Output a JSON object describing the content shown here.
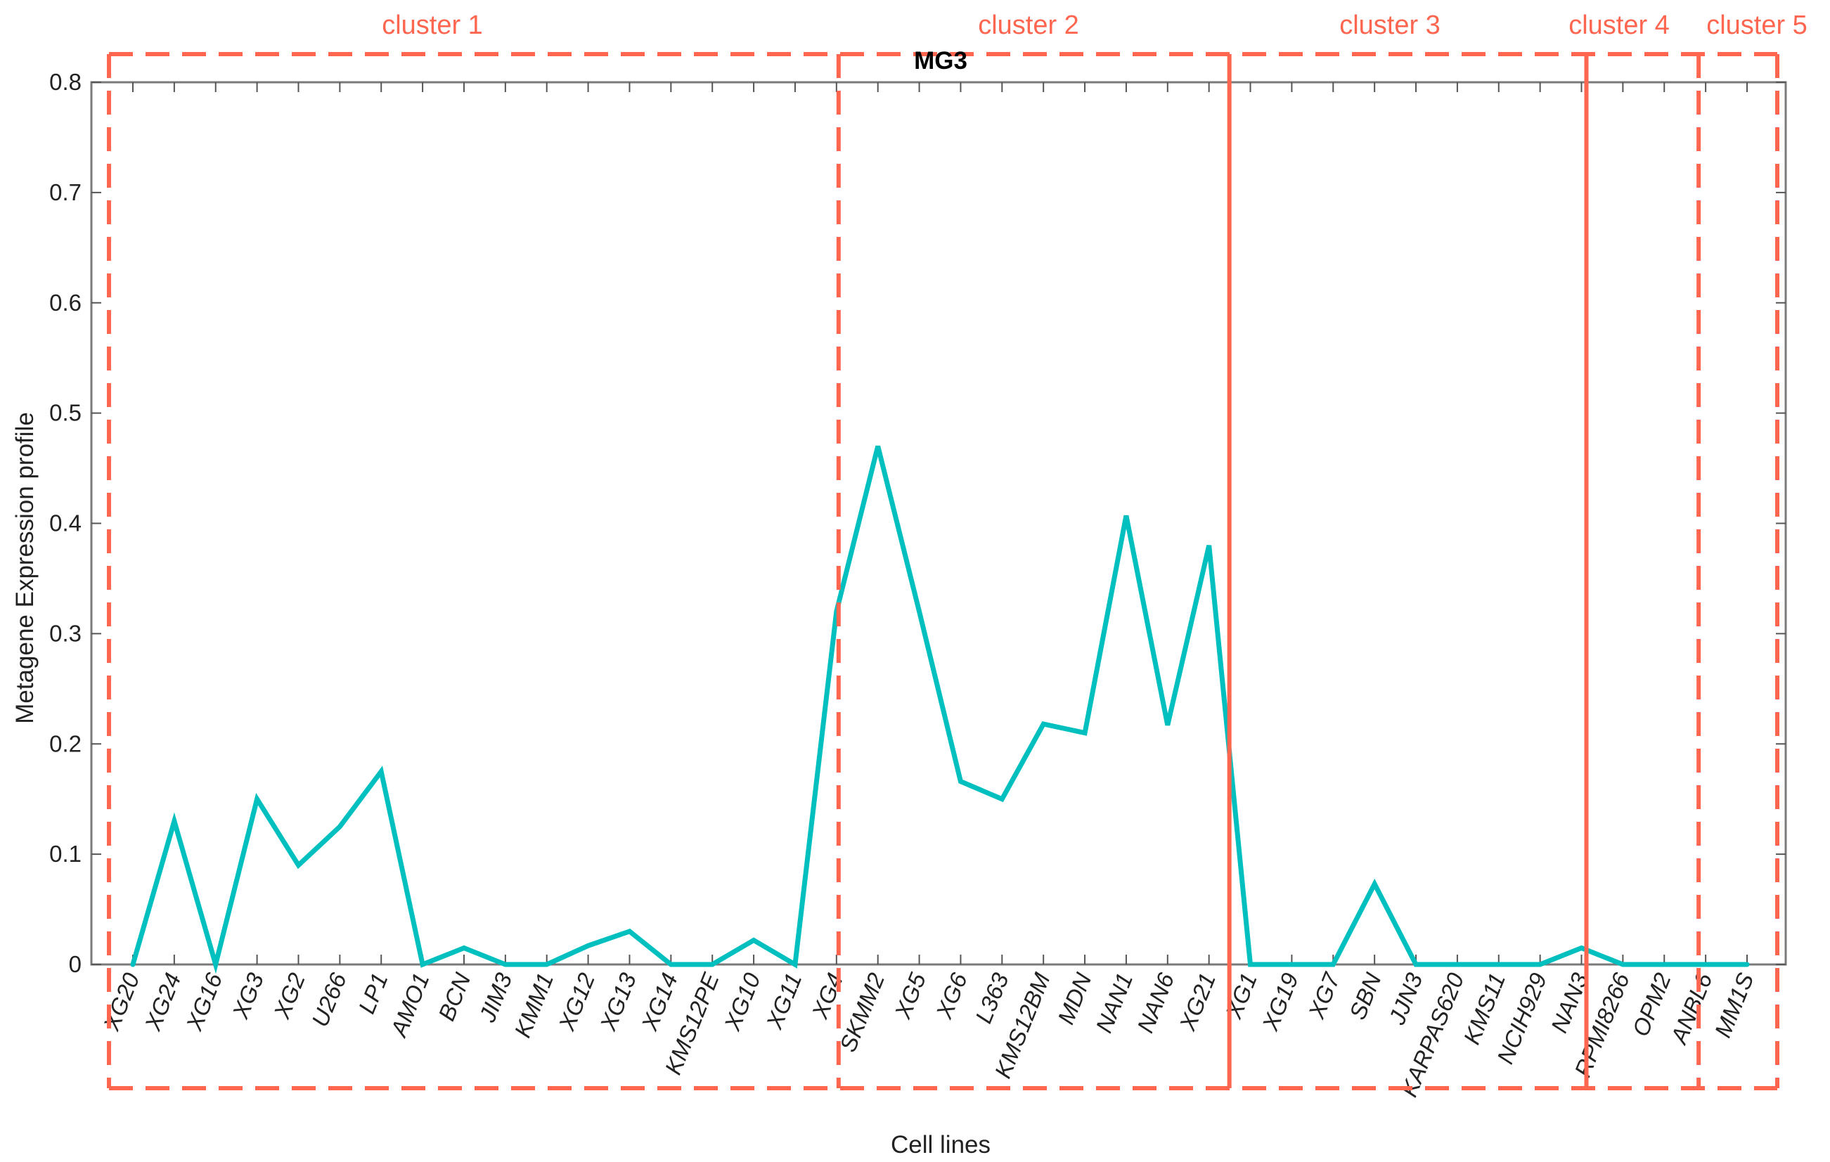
{
  "chart_data": {
    "type": "line",
    "title": "MG3",
    "xlabel": "Cell lines",
    "ylabel": "Metagene Expression profile",
    "ylim": [
      0,
      0.8
    ],
    "yticks": [
      "0",
      "0.1",
      "0.2",
      "0.3",
      "0.4",
      "0.5",
      "0.6",
      "0.7",
      "0.8"
    ],
    "categories": [
      "XG20",
      "XG24",
      "XG16",
      "XG3",
      "XG2",
      "U266",
      "LP1",
      "AMO1",
      "BCN",
      "JIM3",
      "KMM1",
      "XG12",
      "XG13",
      "XG14",
      "KMS12PE",
      "XG10",
      "XG11",
      "XG4",
      "SKMM2",
      "XG5",
      "XG6",
      "L363",
      "KMS12BM",
      "MDN",
      "NAN1",
      "NAN6",
      "XG21",
      "XG1",
      "XG19",
      "XG7",
      "SBN",
      "JJN3",
      "KARPAS620",
      "KMS11",
      "NCIH929",
      "NAN3",
      "RPMI8266",
      "OPM2",
      "ANBL6",
      "MM1S"
    ],
    "series": [
      {
        "color": "#00BFBF",
        "values": [
          0.0,
          0.13,
          0.0,
          0.15,
          0.09,
          0.125,
          0.175,
          0.0,
          0.015,
          0.0,
          0.0,
          0.017,
          0.03,
          0.0,
          0.0,
          0.022,
          0.0,
          0.32,
          0.47,
          0.32,
          0.166,
          0.15,
          0.218,
          0.21,
          0.407,
          0.217,
          0.38,
          0.0,
          0.0,
          0.0,
          0.073,
          0.0,
          0.0,
          0.0,
          0.0,
          0.015,
          0.0,
          0.0,
          0.0,
          0.0
        ]
      }
    ],
    "clusters": [
      {
        "label": "cluster 1",
        "from": "XG20",
        "to": "XG4"
      },
      {
        "label": "cluster 2",
        "from": "XG4",
        "to": "XG21"
      },
      {
        "label": "cluster 3",
        "from": "XG1",
        "to": "NAN3"
      },
      {
        "label": "cluster 4",
        "from": "NAN3",
        "to": "OPM2"
      },
      {
        "label": "cluster 5",
        "from": "ANBL6",
        "to": "MM1S"
      }
    ],
    "cluster_color": "#FF6650",
    "grid": false
  }
}
